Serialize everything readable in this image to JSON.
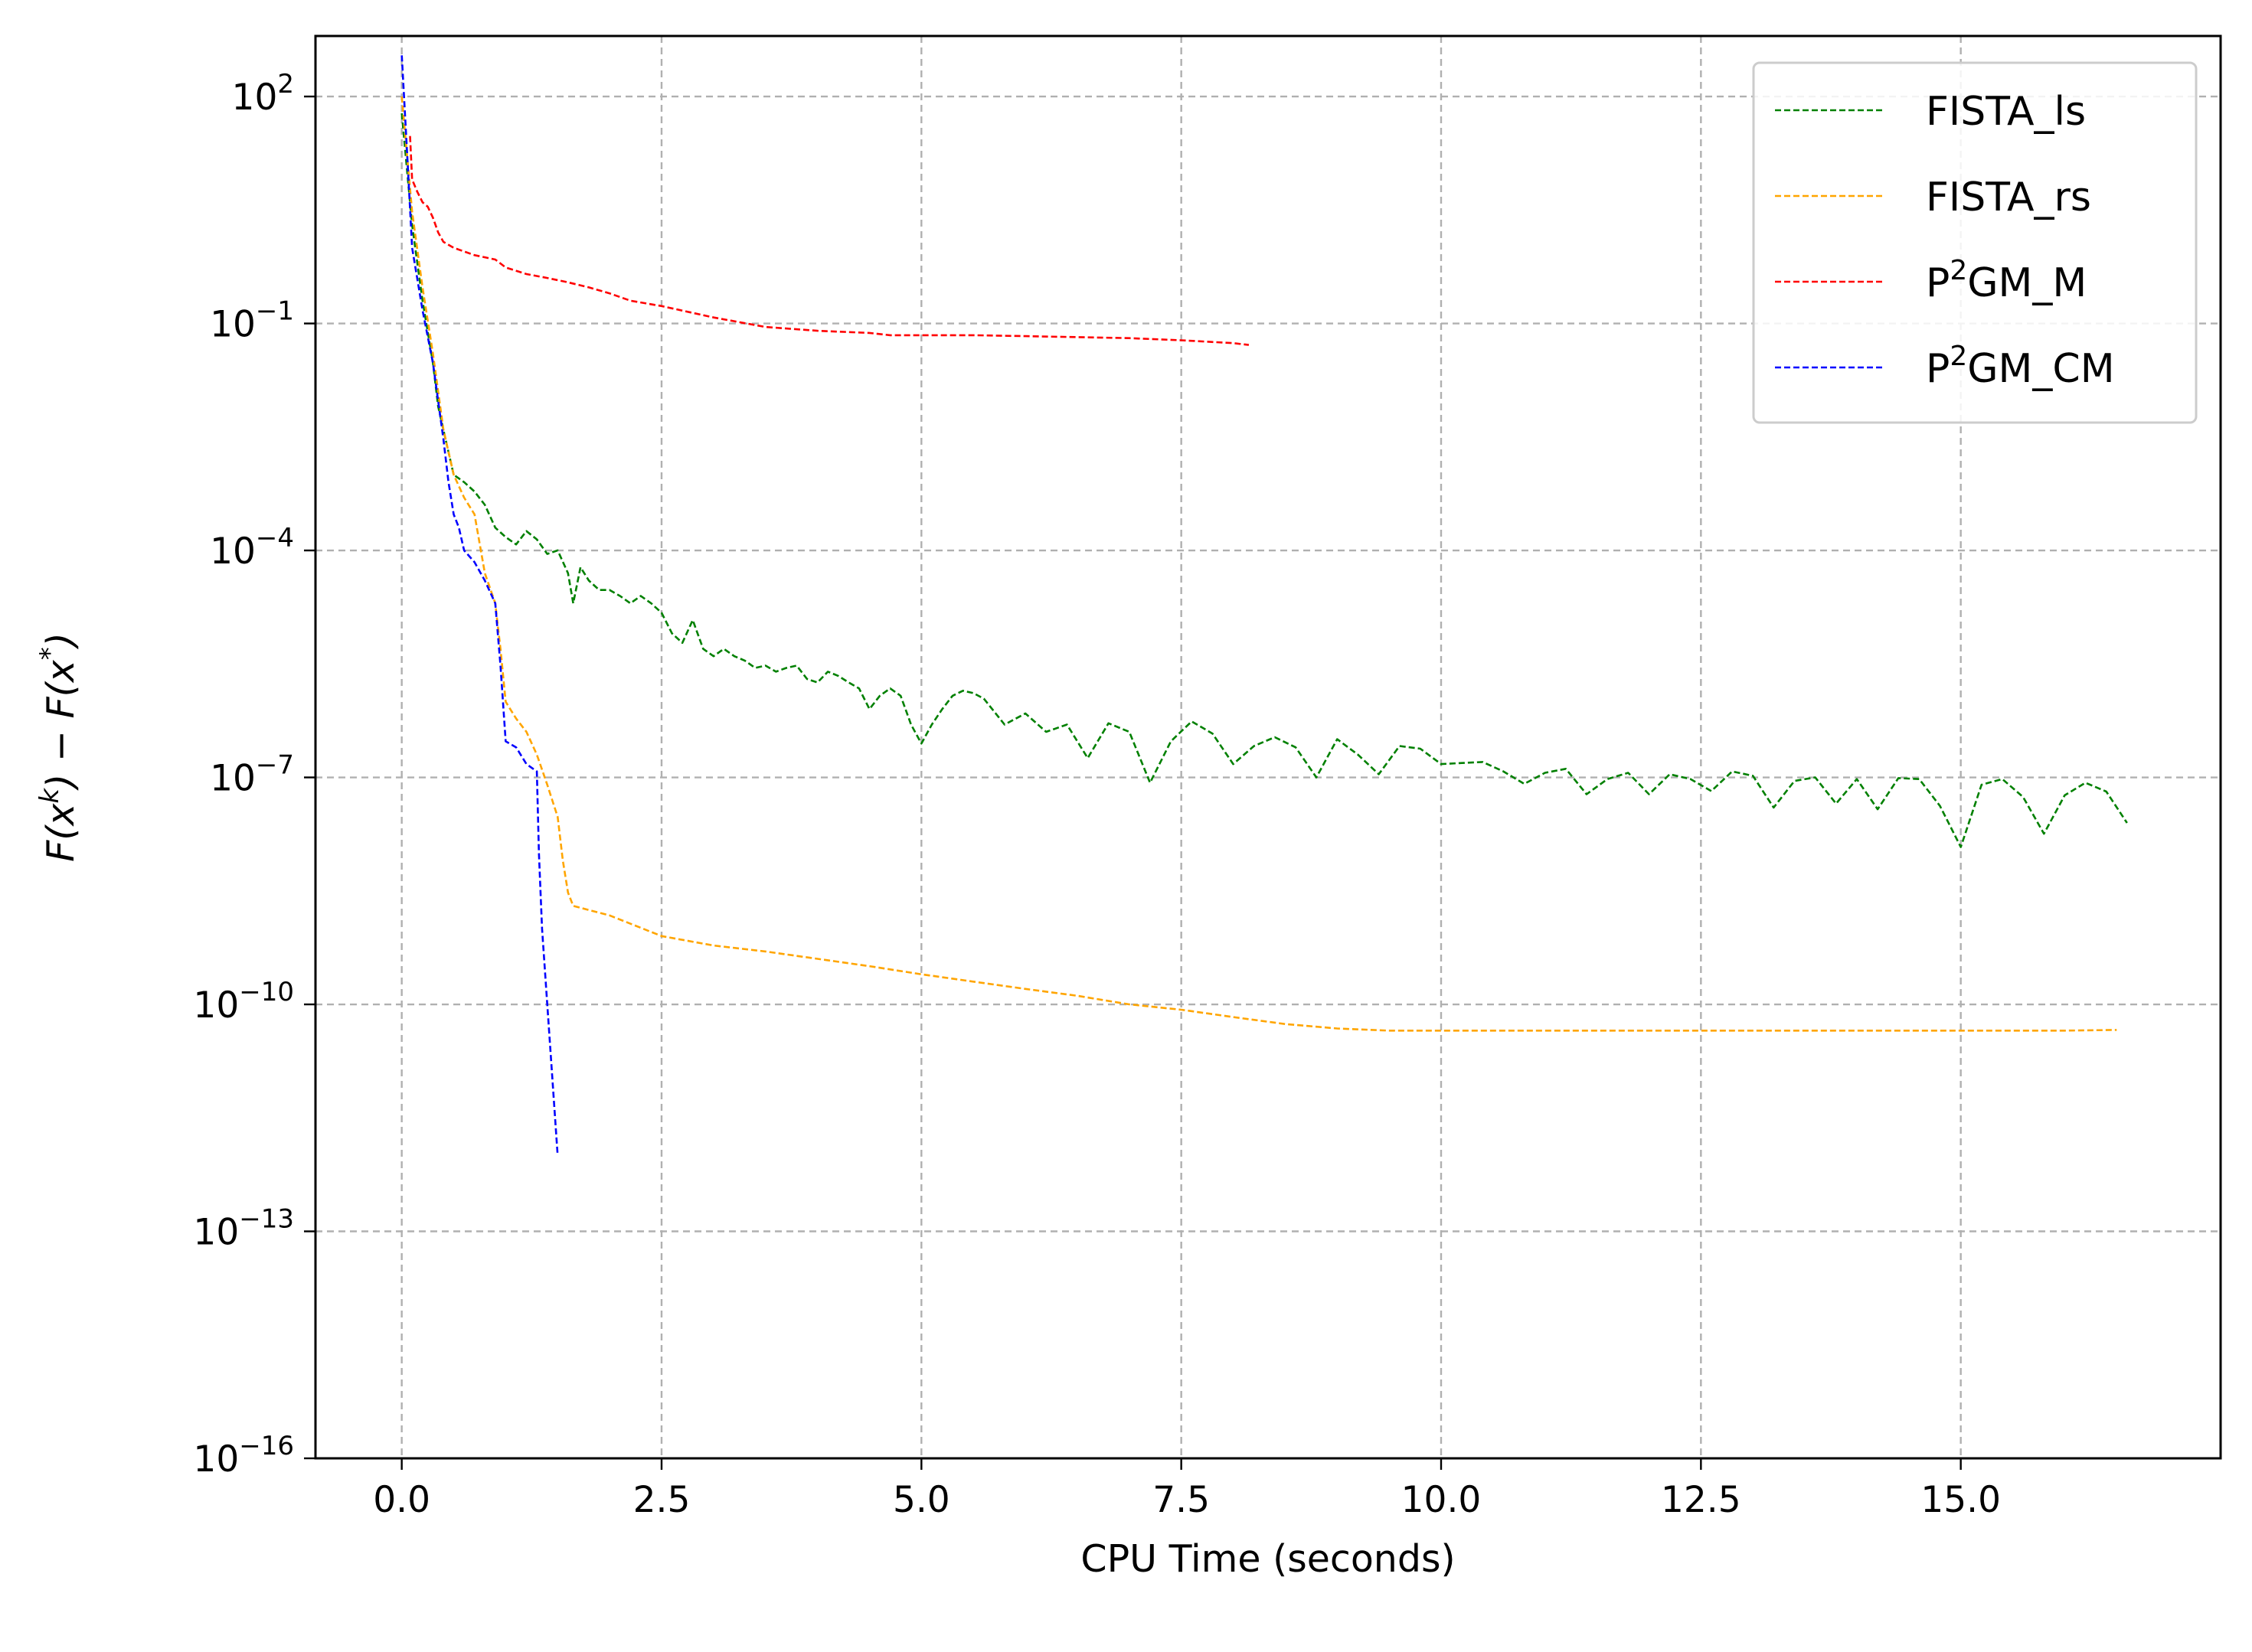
{
  "chart_data": {
    "type": "line",
    "title": "",
    "xlabel": "CPU Time (seconds)",
    "ylabel": {
      "prefix": "F(x",
      "sup1": "k",
      "mid": ") − F(x",
      "sup2": "*",
      "suffix": ")"
    },
    "xlim": [
      -0.83,
      17.5
    ],
    "ylim_log10": [
      -16,
      2.8
    ],
    "yscale": "log",
    "grid": true,
    "legend_position": "top-right",
    "x_ticks": [
      0.0,
      2.5,
      5.0,
      7.5,
      10.0,
      12.5,
      15.0
    ],
    "x_tick_labels": [
      "0.0",
      "2.5",
      "5.0",
      "7.5",
      "10.0",
      "12.5",
      "15.0"
    ],
    "y_ticks": [
      {
        "exp": 2,
        "base": "10",
        "sup": "2"
      },
      {
        "exp": -1,
        "base": "10",
        "sup": "−1"
      },
      {
        "exp": -4,
        "base": "10",
        "sup": "−4"
      },
      {
        "exp": -7,
        "base": "10",
        "sup": "−7"
      },
      {
        "exp": -10,
        "base": "10",
        "sup": "−10"
      },
      {
        "exp": -13,
        "base": "10",
        "sup": "−13"
      },
      {
        "exp": -16,
        "base": "10",
        "sup": "−16"
      }
    ],
    "series": [
      {
        "name": "FISTA_ls",
        "legend": {
          "pre": "FISTA_ls",
          "sup": "",
          "post": ""
        },
        "color": "#008000",
        "x": [
          0.0,
          0.1,
          0.2,
          0.3,
          0.35,
          0.42,
          0.5,
          0.6,
          0.7,
          0.8,
          0.9,
          1.0,
          1.1,
          1.2,
          1.3,
          1.4,
          1.5,
          1.6,
          1.65,
          1.72,
          1.8,
          1.9,
          2.0,
          2.1,
          2.2,
          2.3,
          2.4,
          2.5,
          2.6,
          2.7,
          2.8,
          2.9,
          3.0,
          3.1,
          3.2,
          3.3,
          3.4,
          3.5,
          3.6,
          3.7,
          3.8,
          3.9,
          4.0,
          4.1,
          4.2,
          4.3,
          4.4,
          4.5,
          4.6,
          4.7,
          4.8,
          4.9,
          5.0,
          5.1,
          5.2,
          5.3,
          5.4,
          5.5,
          5.6,
          5.8,
          6.0,
          6.2,
          6.4,
          6.6,
          6.8,
          7.0,
          7.2,
          7.4,
          7.6,
          7.8,
          8.0,
          8.2,
          8.4,
          8.6,
          8.8,
          9.0,
          9.2,
          9.4,
          9.6,
          9.8,
          10.0,
          10.2,
          10.4,
          10.6,
          10.8,
          11.0,
          11.2,
          11.4,
          11.6,
          11.8,
          12.0,
          12.2,
          12.4,
          12.6,
          12.8,
          13.0,
          13.2,
          13.4,
          13.6,
          13.8,
          14.0,
          14.2,
          14.4,
          14.6,
          14.8,
          15.0,
          15.2,
          15.4,
          15.6,
          15.8,
          16.0,
          16.2,
          16.4,
          16.6
        ],
        "y": [
          60,
          2.0,
          0.2,
          0.03,
          0.008,
          0.003,
          0.001,
          0.0008,
          0.0006,
          0.0004,
          0.0002,
          0.00015,
          0.00012,
          0.00018,
          0.00014,
          9e-05,
          0.0001,
          5e-05,
          2e-05,
          6e-05,
          4e-05,
          3e-05,
          3e-05,
          2.5e-05,
          2e-05,
          2.5e-05,
          2e-05,
          1.5e-05,
          8e-06,
          6e-06,
          1.2e-05,
          5e-06,
          4e-06,
          5e-06,
          4e-06,
          3.5e-06,
          2.8e-06,
          3e-06,
          2.5e-06,
          2.8e-06,
          3e-06,
          2e-06,
          1.8e-06,
          2.5e-06,
          2.2e-06,
          1.8e-06,
          1.5e-06,
          8e-07,
          1.2e-06,
          1.5e-06,
          1.2e-06,
          5e-07,
          2.8e-07,
          5e-07,
          8e-07,
          1.2e-06,
          1.4e-06,
          1.3e-06,
          1.1e-06,
          5e-07,
          7e-07,
          4e-07,
          5e-07,
          1.8e-07,
          5.2e-07,
          4e-07,
          8.5e-08,
          3e-07,
          5.5e-07,
          3.8e-07,
          1.5e-07,
          2.6e-07,
          3.4e-07,
          2.5e-07,
          1e-07,
          3.2e-07,
          2e-07,
          1.1e-07,
          2.6e-07,
          2.4e-07,
          1.5e-07,
          1.55e-07,
          1.6e-07,
          1.2e-07,
          8.2e-08,
          1.15e-07,
          1.3e-07,
          6e-08,
          9.5e-08,
          1.15e-07,
          6e-08,
          1.1e-07,
          9.5e-08,
          6.6e-08,
          1.2e-07,
          1.05e-07,
          4e-08,
          9e-08,
          1e-07,
          4.5e-08,
          9.5e-08,
          3.8e-08,
          9.8e-08,
          9.5e-08,
          4.2e-08,
          1.2e-08,
          8e-08,
          9.5e-08,
          5.5e-08,
          1.8e-08,
          5.8e-08,
          8.5e-08,
          6.5e-08,
          2.5e-08
        ]
      },
      {
        "name": "FISTA_rs",
        "legend": {
          "pre": "FISTA_rs",
          "sup": "",
          "post": ""
        },
        "color": "#ffa500",
        "x": [
          0.0,
          0.1,
          0.2,
          0.3,
          0.4,
          0.5,
          0.6,
          0.7,
          0.8,
          0.9,
          0.95,
          1.0,
          1.1,
          1.2,
          1.3,
          1.4,
          1.5,
          1.55,
          1.6,
          1.65,
          2.0,
          2.5,
          3.0,
          3.5,
          4.0,
          4.5,
          5.0,
          5.5,
          6.0,
          6.5,
          7.0,
          7.5,
          8.0,
          8.5,
          9.0,
          9.5,
          10.0,
          11.0,
          12.0,
          13.0,
          14.0,
          15.0,
          16.0,
          16.5
        ],
        "y": [
          100,
          3.0,
          0.3,
          0.04,
          0.004,
          0.001,
          0.0005,
          0.0003,
          5e-05,
          2e-05,
          5e-06,
          1e-06,
          6e-07,
          4e-07,
          2e-07,
          8e-08,
          3e-08,
          8e-09,
          3e-09,
          2e-09,
          1.5e-09,
          8e-10,
          6e-10,
          5e-10,
          4e-10,
          3.2e-10,
          2.5e-10,
          2e-10,
          1.6e-10,
          1.3e-10,
          1e-10,
          8.5e-11,
          6.8e-11,
          5.5e-11,
          4.8e-11,
          4.5e-11,
          4.5e-11,
          4.5e-11,
          4.5e-11,
          4.5e-11,
          4.5e-11,
          4.5e-11,
          4.5e-11,
          4.6e-11
        ]
      },
      {
        "name": "P2GM_M",
        "legend": {
          "pre": "P",
          "sup": "2",
          "post": "GM_M"
        },
        "color": "#ff0000",
        "x": [
          0.08,
          0.1,
          0.15,
          0.2,
          0.25,
          0.3,
          0.35,
          0.4,
          0.5,
          0.7,
          0.9,
          1.0,
          1.2,
          1.4,
          1.6,
          1.8,
          2.0,
          2.2,
          2.5,
          3.0,
          3.5,
          4.0,
          4.5,
          4.7,
          5.0,
          5.5,
          6.0,
          6.5,
          7.0,
          7.5,
          8.0,
          8.15
        ],
        "y": [
          30,
          8,
          5.5,
          4.0,
          3.5,
          2.5,
          1.6,
          1.2,
          1.0,
          0.8,
          0.7,
          0.55,
          0.45,
          0.4,
          0.35,
          0.3,
          0.25,
          0.2,
          0.17,
          0.12,
          0.09,
          0.08,
          0.075,
          0.07,
          0.07,
          0.07,
          0.068,
          0.066,
          0.064,
          0.06,
          0.055,
          0.052
        ]
      },
      {
        "name": "P2GM_CM",
        "legend": {
          "pre": "P",
          "sup": "2",
          "post": "GM_CM"
        },
        "color": "#0000ff",
        "x": [
          0.0,
          0.05,
          0.1,
          0.2,
          0.3,
          0.4,
          0.45,
          0.5,
          0.55,
          0.6,
          0.7,
          0.8,
          0.9,
          0.95,
          1.0,
          1.1,
          1.2,
          1.3,
          1.32,
          1.35,
          1.4,
          1.45,
          1.5
        ],
        "y": [
          350,
          20,
          1.0,
          0.15,
          0.03,
          0.003,
          0.0008,
          0.0003,
          0.0002,
          0.0001,
          7e-05,
          4e-05,
          2e-05,
          3e-06,
          3e-07,
          2.5e-07,
          1.5e-07,
          1.2e-07,
          1e-08,
          1e-09,
          1e-10,
          1e-11,
          1e-12
        ]
      }
    ]
  }
}
